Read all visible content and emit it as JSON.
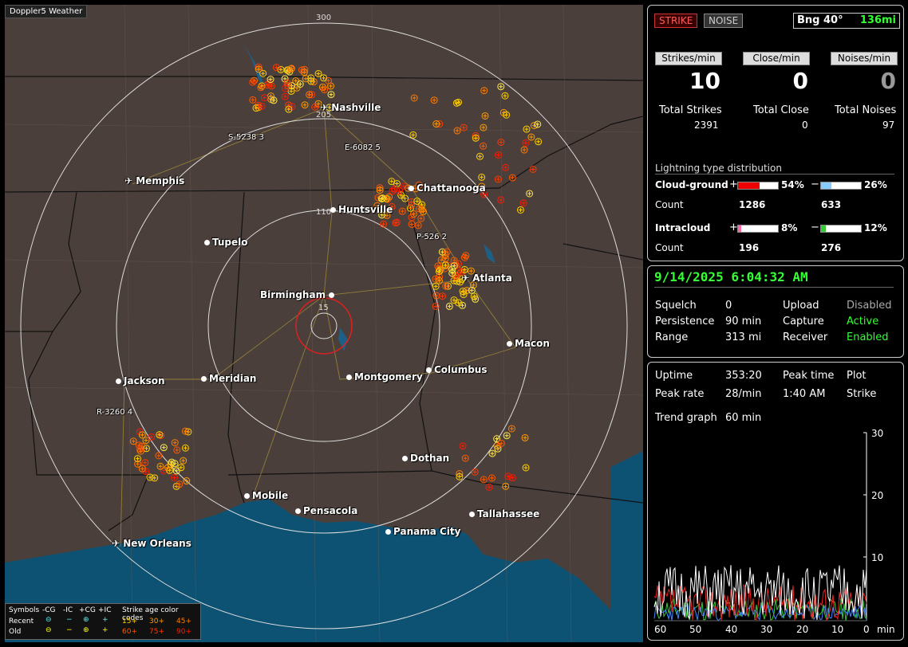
{
  "app": {
    "title": "Doppler5 Weather"
  },
  "map": {
    "rings": [
      "300",
      "205",
      "110",
      "15"
    ],
    "cities": [
      "Nashville",
      "Memphis",
      "Chattanooga",
      "Huntsville",
      "Tupelo",
      "Birmingham",
      "Atlanta",
      "Macon",
      "Jackson",
      "Meridian",
      "Montgomery",
      "Columbus",
      "Dothan",
      "Mobile",
      "Pensacola",
      "Panama City",
      "Tallahassee",
      "New Orleans"
    ],
    "tags": [
      "S-5238  3",
      "E-6082  5",
      "P-526  2",
      "R-3260  4"
    ]
  },
  "legend": {
    "symbols_label": "Symbols",
    "cols": [
      "-CG",
      "-IC",
      "+CG",
      "+IC"
    ],
    "age_label": "Strike age color codes",
    "recent_label": "Recent",
    "old_label": "Old",
    "recent_ages": [
      "15+",
      "30+",
      "45+"
    ],
    "old_ages": [
      "60+",
      "75+",
      "90+"
    ],
    "colors": [
      "#ffd000",
      "#ff9a00",
      "#ff7a00",
      "#ff5a00",
      "#ff3a00",
      "#ff1a00"
    ]
  },
  "panel1": {
    "strike_button": "STRIKE",
    "noise_button": "NOISE",
    "bearing": "Bng 40°",
    "distance": "136mi",
    "headers": [
      "Strikes/min",
      "Close/min",
      "Noises/min"
    ],
    "rates": [
      "10",
      "0",
      "0"
    ],
    "total_labels": [
      "Total Strikes",
      "Total Close",
      "Total Noises"
    ],
    "totals": [
      "2391",
      "0",
      "97"
    ],
    "dist_title": "Lightning type distribution",
    "cg_label": "Cloud-ground",
    "ic_label": "Intracloud",
    "count_label": "Count",
    "plus": "+",
    "minus": "−",
    "cg_pos_pct": "54%",
    "cg_neg_pct": "26%",
    "ic_pos_pct": "8%",
    "ic_neg_pct": "12%",
    "cg_pos_count": "1286",
    "cg_neg_count": "633",
    "ic_pos_count": "196",
    "ic_neg_count": "276",
    "cg_pos_fill": 0.54,
    "cg_neg_fill": 0.26,
    "ic_pos_fill": 0.08,
    "ic_neg_fill": 0.12
  },
  "panel2": {
    "datetime": "9/14/2025 6:04:32 AM",
    "rows": [
      {
        "k1": "Squelch",
        "v1": "0",
        "k2": "Upload",
        "v2": "Disabled"
      },
      {
        "k1": "Persistence",
        "v1": "90 min",
        "k2": "Capture",
        "v2": "Active"
      },
      {
        "k1": "Range",
        "v1": "313 mi",
        "k2": "Receiver",
        "v2": "Enabled"
      }
    ]
  },
  "panel3": {
    "uptime_label": "Uptime",
    "uptime": "353:20",
    "peaktime_label": "Peak time",
    "peaktime": "1:40 AM",
    "plot_label": "Plot",
    "plot": "Strike",
    "peakrate_label": "Peak rate",
    "peakrate": "28/min",
    "trend_label": "Trend graph",
    "trend": "60 min",
    "y_ticks": [
      "30",
      "20",
      "10"
    ],
    "x_ticks": [
      "60",
      "50",
      "40",
      "30",
      "20",
      "10",
      "0"
    ],
    "x_unit": "min"
  }
}
